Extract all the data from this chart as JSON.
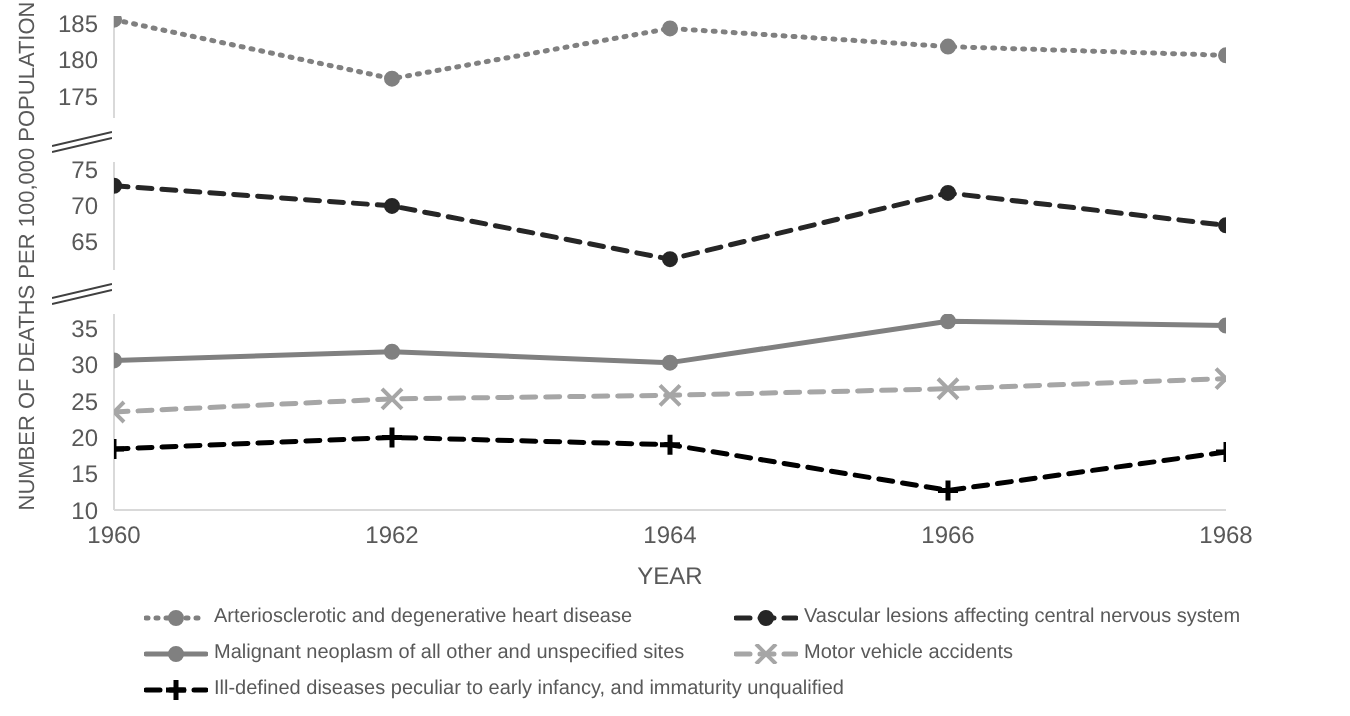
{
  "chart_data": [
    {
      "type": "line",
      "tick_labels": "y",
      "xlim": [
        1960,
        1968
      ],
      "xticks": [
        1960,
        1962,
        1964,
        1966,
        1968
      ],
      "ylim": [
        172,
        186
      ],
      "yticks": [
        175,
        180,
        185
      ],
      "grid": false,
      "legend": "bottom",
      "x": [
        1960,
        1962,
        1964,
        1966,
        1968
      ],
      "series": [
        {
          "name": "Arteriosclerotic and degenerative heart disease",
          "color": "#808080",
          "line_style": "dotted",
          "marker": "circle",
          "values": [
            185.5,
            177.4,
            184.3,
            181.8,
            180.6
          ]
        }
      ]
    },
    {
      "type": "line",
      "tick_labels": "y",
      "xlim": [
        1960,
        1968
      ],
      "xticks": [
        1960,
        1962,
        1964,
        1966,
        1968
      ],
      "ylim": [
        61,
        76
      ],
      "yticks": [
        65,
        70,
        75
      ],
      "grid": false,
      "legend": "bottom",
      "x": [
        1960,
        1962,
        1964,
        1966,
        1968
      ],
      "series": [
        {
          "name": "Vascular lesions affecting central nervous system",
          "color": "#262626",
          "line_style": "dashed",
          "marker": "circle",
          "values": [
            72.7,
            69.9,
            62.5,
            71.7,
            67.2
          ]
        }
      ]
    },
    {
      "type": "line",
      "xlabel": "YEAR",
      "ylabel": "NUMBER OF DEATHS PER 100,000 POPULATION",
      "xlim": [
        1960,
        1968
      ],
      "xticks": [
        1960,
        1962,
        1964,
        1966,
        1968
      ],
      "ylim": [
        10,
        37
      ],
      "yticks": [
        10,
        15,
        20,
        25,
        30,
        35
      ],
      "grid": false,
      "legend": "bottom",
      "x": [
        1960,
        1962,
        1964,
        1966,
        1968
      ],
      "series": [
        {
          "name": "Malignant neoplasm of all other and unspecified sites",
          "color": "#808080",
          "line_style": "solid",
          "marker": "circle",
          "values": [
            30.6,
            31.8,
            30.3,
            36.0,
            35.4
          ]
        },
        {
          "name": "Motor vehicle accidents",
          "color": "#a6a6a6",
          "line_style": "dashed",
          "marker": "cross",
          "values": [
            23.5,
            25.3,
            25.8,
            26.7,
            28.1
          ]
        },
        {
          "name": "Ill-defined diseases peculiar to early infancy, and immaturity unqualified",
          "color": "#000000",
          "line_style": "dashed",
          "marker": "plus",
          "values": [
            18.4,
            20.0,
            19.0,
            12.7,
            18.0
          ]
        }
      ]
    }
  ]
}
